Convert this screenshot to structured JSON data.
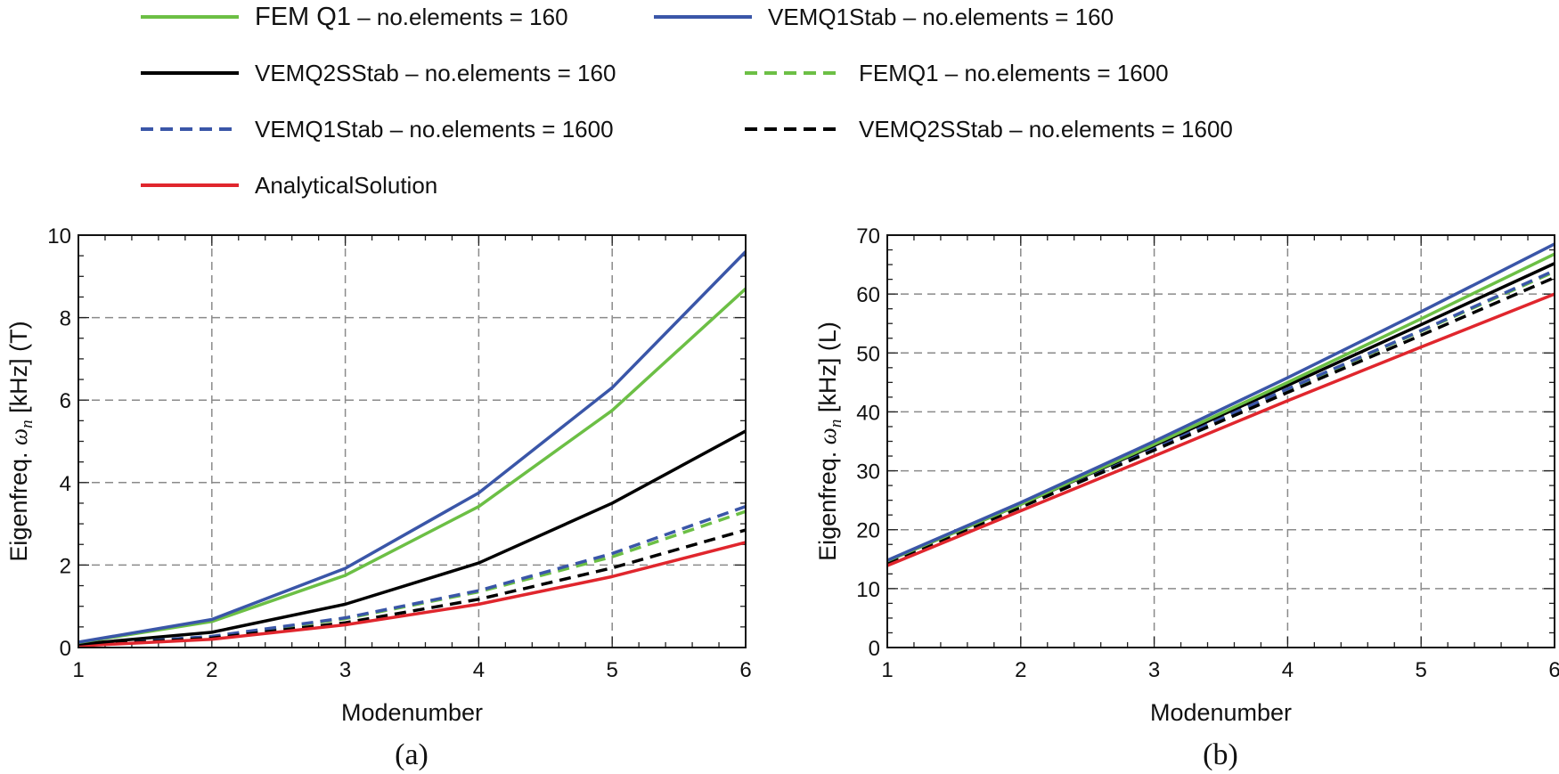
{
  "legend": [
    {
      "id": "fem160",
      "name": "FEM Q1",
      "suffix": " – no.elements = 160",
      "color": "#6cbf45",
      "dashed": false
    },
    {
      "id": "vem1_160",
      "name": "VEMQ1Stab",
      "suffix": " – no.elements = 160",
      "color": "#3a56a8",
      "dashed": false
    },
    {
      "id": "vem2_160",
      "name": "VEMQ2SStab",
      "suffix": " – no.elements = 160",
      "color": "#000000",
      "dashed": false
    },
    {
      "id": "fem1600",
      "name": "FEMQ1",
      "suffix": " – no.elements = 1600",
      "color": "#6cbf45",
      "dashed": true
    },
    {
      "id": "vem1_1600",
      "name": "VEMQ1Stab",
      "suffix": " – no.elements = 1600",
      "color": "#3a56a8",
      "dashed": true
    },
    {
      "id": "vem2_1600",
      "name": "VEMQ2SStab",
      "suffix": " – no.elements = 1600",
      "color": "#000000",
      "dashed": true
    },
    {
      "id": "analytical",
      "name": "AnalyticalSolution",
      "suffix": "",
      "color": "#e0262d",
      "dashed": false
    }
  ],
  "chart_data": [
    {
      "type": "line",
      "caption": "(a)",
      "xlabel": "Modenumber",
      "ylabel_prefix": "Eigenfreq. ",
      "ylabel_symbol": "ω",
      "ylabel_subscript": "n",
      "ylabel_suffix": " [kHz] (T)",
      "xlim": [
        1,
        6
      ],
      "ylim": [
        0,
        10
      ],
      "grid": true,
      "x": [
        1,
        2,
        3,
        4,
        5,
        6
      ],
      "xticks": [
        "1",
        "2",
        "3",
        "4",
        "5",
        "6"
      ],
      "yticks": [
        "0",
        "2",
        "4",
        "6",
        "8",
        "10"
      ],
      "ytick_values": [
        0,
        2,
        4,
        6,
        8,
        10
      ],
      "series": [
        {
          "id": "fem160",
          "values": [
            0.12,
            0.63,
            1.75,
            3.42,
            5.75,
            8.7
          ]
        },
        {
          "id": "vem1_160",
          "values": [
            0.13,
            0.68,
            1.92,
            3.75,
            6.3,
            9.6
          ]
        },
        {
          "id": "vem2_160",
          "values": [
            0.08,
            0.37,
            1.05,
            2.05,
            3.5,
            5.25
          ]
        },
        {
          "id": "fem1600",
          "values": [
            0.05,
            0.26,
            0.7,
            1.35,
            2.2,
            3.3
          ]
        },
        {
          "id": "vem1_1600",
          "values": [
            0.05,
            0.27,
            0.72,
            1.38,
            2.28,
            3.42
          ]
        },
        {
          "id": "vem2_1600",
          "values": [
            0.05,
            0.23,
            0.6,
            1.17,
            1.93,
            2.85
          ]
        },
        {
          "id": "analytical",
          "values": [
            0.04,
            0.2,
            0.55,
            1.05,
            1.72,
            2.55
          ]
        }
      ]
    },
    {
      "type": "line",
      "caption": "(b)",
      "xlabel": "Modenumber",
      "ylabel_prefix": "Eigenfreq. ",
      "ylabel_symbol": "ω",
      "ylabel_subscript": "n",
      "ylabel_suffix": " [kHz] (L)",
      "xlim": [
        1,
        6
      ],
      "ylim": [
        0,
        70
      ],
      "grid": true,
      "x": [
        1,
        2,
        3,
        4,
        5,
        6
      ],
      "xticks": [
        "1",
        "2",
        "3",
        "4",
        "5",
        "6"
      ],
      "yticks": [
        "0",
        "10",
        "20",
        "30",
        "40",
        "50",
        "60",
        "70"
      ],
      "ytick_values": [
        0,
        10,
        20,
        30,
        40,
        50,
        60,
        70
      ],
      "series": [
        {
          "id": "fem160",
          "values": [
            14.7,
            24.3,
            34.5,
            45.0,
            55.8,
            66.8
          ]
        },
        {
          "id": "vem1_160",
          "values": [
            14.8,
            24.6,
            35.0,
            45.8,
            57.0,
            68.5
          ]
        },
        {
          "id": "vem2_160",
          "values": [
            14.7,
            24.3,
            34.3,
            44.5,
            54.8,
            65.2
          ]
        },
        {
          "id": "fem1600",
          "values": [
            14.5,
            24.0,
            33.8,
            43.8,
            53.7,
            63.8
          ]
        },
        {
          "id": "vem1_1600",
          "values": [
            14.5,
            24.0,
            33.8,
            43.9,
            53.8,
            64.0
          ]
        },
        {
          "id": "vem2_1600",
          "values": [
            14.4,
            23.8,
            33.5,
            43.3,
            53.0,
            62.8
          ]
        },
        {
          "id": "analytical",
          "values": [
            13.9,
            23.2,
            32.5,
            41.9,
            51.0,
            60.0
          ]
        }
      ]
    }
  ]
}
